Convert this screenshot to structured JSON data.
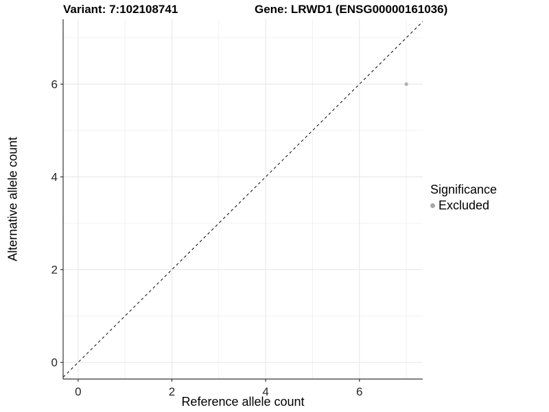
{
  "chart_data": {
    "type": "scatter",
    "titles": [
      "Variant: 7:102108741",
      "Gene: LRWD1 (ENSG00000161036)"
    ],
    "xlabel": "Reference allele count",
    "ylabel": "Alternative allele count",
    "xlim": [
      -0.32,
      7.35
    ],
    "ylim": [
      -0.36,
      7.4
    ],
    "x_ticks": [
      0,
      2,
      4,
      6
    ],
    "y_ticks": [
      0,
      2,
      4,
      6
    ],
    "x_minor": [
      1,
      3,
      5,
      7
    ],
    "y_minor": [
      1,
      3,
      5,
      7
    ],
    "grid": true,
    "identity_line": {
      "slope": 1,
      "intercept": 0,
      "style": "dashed",
      "color": "#000000"
    },
    "series": [
      {
        "name": "Excluded",
        "color": "#b0b0b0",
        "points": [
          [
            7,
            6
          ]
        ]
      }
    ],
    "legend": {
      "position": "right",
      "title": "Significance",
      "items": [
        {
          "label": "Excluded",
          "color": "#a8a8a8"
        }
      ]
    }
  },
  "colors": {
    "background": "#ffffff",
    "grid_major": "#e5e5e5",
    "grid_minor": "#f1f1f1",
    "axis": "#333333",
    "tick_text": "#262626",
    "text": "#000000"
  }
}
